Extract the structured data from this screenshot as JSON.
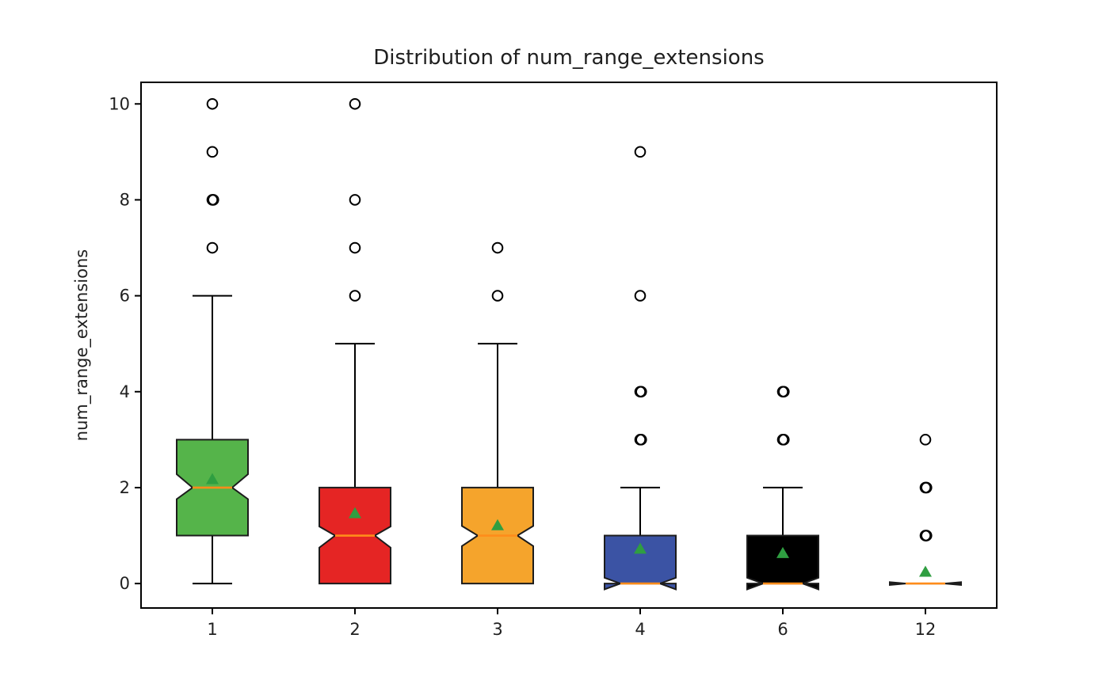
{
  "chart_data": {
    "type": "boxplot",
    "title": "Distribution of num_range_extensions",
    "xlabel": "",
    "ylabel": "num_range_extensions",
    "categories": [
      "1",
      "2",
      "3",
      "4",
      "6",
      "12"
    ],
    "yticks": [
      0,
      2,
      4,
      6,
      8,
      10
    ],
    "ylim": [
      -0.51,
      10.45
    ],
    "xlim": [
      0.5,
      6.5
    ],
    "grid": false,
    "notched": true,
    "legend": "none",
    "colors": {
      "background": "#ffffff",
      "box_edge": "#1c1c1c",
      "whisker": "#000000",
      "flier_edge": "#000000",
      "median_line": "#ff8c1a",
      "mean_marker": "#2f9e41",
      "axis": "#000000",
      "text": "#1f1f1f"
    },
    "boxes": [
      {
        "label": "1",
        "fill_color": "#55b44a",
        "q1": 1,
        "median": 2,
        "q3": 3,
        "whisker_low": 0,
        "whisker_high": 6,
        "notch_low": 1.76,
        "notch_high": 2.28,
        "mean": 2.18,
        "fliers": [
          7,
          8,
          8,
          9,
          10
        ]
      },
      {
        "label": "2",
        "fill_color": "#e52524",
        "q1": 0,
        "median": 1,
        "q3": 2,
        "whisker_low": 0,
        "whisker_high": 5,
        "notch_low": 0.75,
        "notch_high": 1.19,
        "mean": 1.47,
        "fliers": [
          6,
          7,
          8,
          10
        ]
      },
      {
        "label": "3",
        "fill_color": "#f5a42c",
        "q1": 0,
        "median": 1,
        "q3": 2,
        "whisker_low": 0,
        "whisker_high": 5,
        "notch_low": 0.78,
        "notch_high": 1.2,
        "mean": 1.22,
        "fliers": [
          6,
          7
        ]
      },
      {
        "label": "4",
        "fill_color": "#3b53a4",
        "q1": 0,
        "median": 0,
        "q3": 1,
        "whisker_low": 0,
        "whisker_high": 2,
        "notch_low": -0.12,
        "notch_high": 0.12,
        "mean": 0.73,
        "fliers": [
          3,
          3,
          4,
          4,
          6,
          9
        ]
      },
      {
        "label": "6",
        "fill_color": "#000000",
        "q1": 0,
        "median": 0,
        "q3": 1,
        "whisker_low": 0,
        "whisker_high": 2,
        "notch_low": -0.12,
        "notch_high": 0.12,
        "mean": 0.64,
        "fliers": [
          3,
          3,
          4,
          4
        ]
      },
      {
        "label": "12",
        "fill_color": "#000000",
        "q1": 0,
        "median": 0,
        "q3": 0,
        "whisker_low": 0,
        "whisker_high": 0,
        "notch_low": -0.03,
        "notch_high": 0.03,
        "mean": 0.25,
        "fliers": [
          1,
          1,
          2,
          2,
          3
        ]
      }
    ]
  }
}
